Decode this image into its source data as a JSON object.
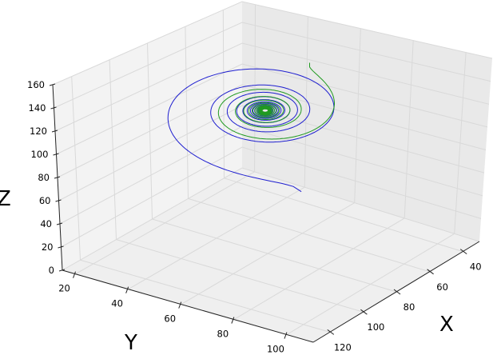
{
  "chart_data": {
    "type": "line",
    "projection": "3d",
    "title": "",
    "xlabel": "X",
    "ylabel": "Y",
    "zlabel": "Z",
    "xlim": [
      30,
      130
    ],
    "ylim": [
      15,
      110
    ],
    "zlim": [
      0,
      160
    ],
    "x_ticks": [
      "40",
      "60",
      "80",
      "100",
      "120"
    ],
    "y_ticks": [
      "20",
      "40",
      "60",
      "80",
      "100"
    ],
    "z_ticks": [
      "0",
      "20",
      "40",
      "60",
      "80",
      "100",
      "120",
      "140",
      "160"
    ],
    "grid": true,
    "legend": "none",
    "series": [
      {
        "color": "#1f1fd0",
        "shape": "decaying spiral converging to a centre point",
        "start": {
          "x": 100,
          "y": 96,
          "z": 35
        },
        "centre": {
          "x": 60,
          "y": 45,
          "z": 100
        },
        "z_start_above_centre": -65,
        "r0": 85,
        "turns": 14
      },
      {
        "color": "#209a20",
        "shape": "decaying spiral converging to a centre point",
        "start": {
          "x": 38,
          "y": 55,
          "z": 158
        },
        "centre": {
          "x": 60,
          "y": 45,
          "z": 100
        },
        "z_start_above_centre": 58,
        "r0": 115,
        "turns": 14
      }
    ]
  }
}
